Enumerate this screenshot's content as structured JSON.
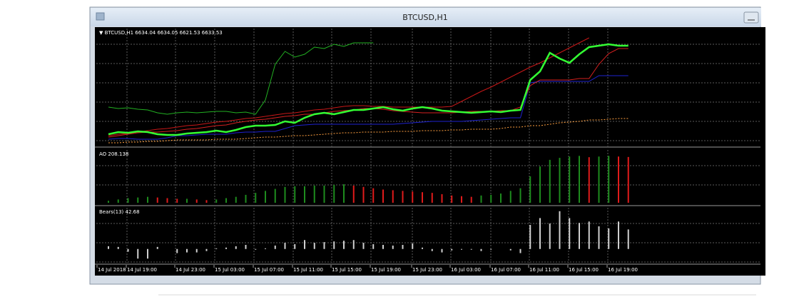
{
  "window": {
    "title": "BTCUSD,H1"
  },
  "time_axis": [
    "14 Jul 2018",
    "14 Jul 19:00",
    "14 Jul 23:00",
    "15 Jul 03:00",
    "15 Jul 07:00",
    "15 Jul 11:00",
    "15 Jul 15:00",
    "15 Jul 19:00",
    "15 Jul 23:00",
    "16 Jul 03:00",
    "16 Jul 07:00",
    "16 Jul 11:00",
    "16 Jul 15:00",
    "16 Jul 19:00"
  ],
  "chart_data": [
    {
      "type": "line",
      "title": "▼ BTCUSD,H1  6634.04 6634.05 6621.53 6633.53",
      "ylim": [
        0,
        165
      ],
      "series": [
        {
          "color": "#ffa040",
          "line_style": "dotted",
          "values": [
            5,
            5,
            6,
            6,
            7,
            7,
            8,
            9,
            9,
            9,
            9,
            10,
            10,
            10,
            11,
            12,
            13,
            13,
            14,
            15,
            15,
            16,
            17,
            18,
            19,
            19,
            20,
            20,
            20,
            21,
            21,
            21,
            22,
            22,
            22,
            23,
            23,
            24,
            24,
            24,
            25,
            27,
            27,
            29,
            29,
            31,
            33,
            34,
            35,
            37,
            37,
            38,
            39,
            39
          ]
        },
        {
          "color": "#1e22d0",
          "line_style": "solid",
          "values": [
            10,
            11,
            11,
            10,
            10,
            10,
            12,
            15,
            15,
            16,
            17,
            17,
            17,
            19,
            20,
            20,
            21,
            21,
            25,
            29,
            30,
            31,
            31,
            31,
            31,
            31,
            31,
            31,
            31,
            31,
            32,
            33,
            34,
            35,
            35,
            35,
            35,
            36,
            37,
            38,
            39,
            40,
            40,
            89,
            91,
            91,
            91,
            91,
            91,
            91,
            99,
            99,
            99,
            99
          ]
        },
        {
          "color": "#c81818",
          "line_style": "solid",
          "values": [
            15,
            17,
            18,
            20,
            22,
            24,
            25,
            27,
            29,
            30,
            32,
            34,
            35,
            37,
            39,
            40,
            42,
            44,
            46,
            47,
            49,
            51,
            52,
            54,
            56,
            57,
            57,
            56,
            56,
            55,
            55,
            55,
            55,
            55,
            55,
            56,
            63,
            70,
            77,
            83,
            90,
            97,
            104,
            111,
            117,
            124,
            131,
            138,
            145,
            152
          ]
        },
        {
          "color": "#d42020",
          "line_style": "solid",
          "values": [
            13,
            15,
            17,
            19,
            20,
            20,
            21,
            22,
            24,
            25,
            27,
            29,
            30,
            33,
            35,
            37,
            38,
            40,
            42,
            43,
            45,
            45,
            47,
            49,
            50,
            51,
            53,
            53,
            52,
            50,
            49,
            48,
            47,
            47,
            47,
            47,
            48,
            49,
            49,
            49,
            50,
            50,
            55,
            85,
            93,
            93,
            93,
            93,
            95,
            95,
            115,
            130,
            137,
            137
          ]
        },
        {
          "color": "#22b022",
          "line_style": "solid",
          "values": [
            55,
            53,
            54,
            52,
            51,
            47,
            45,
            47,
            48,
            47,
            48,
            49,
            49,
            47,
            48,
            45,
            65,
            115,
            133,
            125,
            129,
            139,
            137,
            143,
            140,
            145,
            145,
            145
          ]
        },
        {
          "color": "#33ff33",
          "line_style": "thick",
          "values": [
            17,
            20,
            19,
            21,
            20,
            17,
            16,
            16,
            18,
            19,
            20,
            22,
            20,
            23,
            27,
            29,
            29,
            30,
            35,
            33,
            40,
            45,
            47,
            45,
            48,
            51,
            51,
            53,
            55,
            52,
            50,
            53,
            55,
            53,
            50,
            49,
            48,
            47,
            48,
            49,
            48,
            50,
            51,
            93,
            105,
            131,
            123,
            117,
            129,
            139,
            141,
            143,
            141,
            141
          ]
        }
      ]
    },
    {
      "type": "bar",
      "title": "AO 208.138",
      "ylim": [
        0,
        240
      ],
      "up_color": "#1e8c1e",
      "down_color": "#e01b1b",
      "values": [
        9,
        15,
        21,
        24,
        27,
        24,
        21,
        18,
        18,
        15,
        12,
        15,
        21,
        27,
        36,
        45,
        54,
        63,
        72,
        75,
        75,
        78,
        78,
        81,
        84,
        78,
        72,
        66,
        60,
        57,
        54,
        51,
        48,
        45,
        39,
        33,
        30,
        27,
        33,
        36,
        42,
        54,
        66,
        120,
        165,
        195,
        204,
        210,
        213,
        207,
        210,
        213,
        210,
        208.138
      ]
    },
    {
      "type": "bar",
      "title": "Bears(13) 42.68",
      "ylim": [
        -30,
        90
      ],
      "color": "#d0d0d0",
      "values": [
        6,
        4.5,
        -6,
        -21,
        -21,
        4.5,
        0,
        -9,
        -7.5,
        -7.5,
        -4.5,
        1.5,
        3,
        6,
        9,
        -1.5,
        1.5,
        7.5,
        13.5,
        10.5,
        19.5,
        13.5,
        15,
        16.5,
        18,
        19.5,
        13.5,
        10.5,
        9,
        7.5,
        9,
        12,
        3,
        -4.5,
        -7.5,
        -3,
        -1.5,
        -1.5,
        -4.5,
        -1.5,
        0,
        -3,
        -9,
        52.5,
        67.5,
        55.5,
        82.5,
        67.5,
        57,
        60,
        49.5,
        45,
        60,
        42.68
      ]
    }
  ]
}
